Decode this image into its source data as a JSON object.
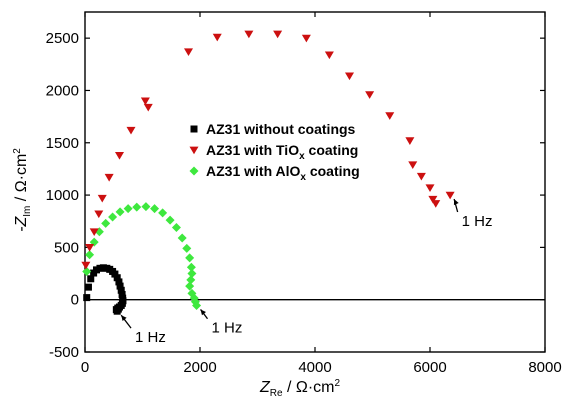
{
  "chart_data": {
    "type": "scatter",
    "xlabel_main": "Z",
    "xlabel_sub": "Re",
    "xlabel_unit": " / Ω·cm",
    "xlabel_sup": "2",
    "ylabel_prefix": "-Z",
    "ylabel_sub": "Im",
    "ylabel_unit": " / Ω·cm",
    "ylabel_sup": "2",
    "xlim": [
      0,
      8000
    ],
    "ylim": [
      -500,
      2750
    ],
    "xticks": [
      0,
      2000,
      4000,
      6000,
      8000
    ],
    "yticks": [
      -500,
      0,
      500,
      1000,
      1500,
      2000,
      2500
    ],
    "legend_position": "top-right",
    "series": [
      {
        "name_main": "AZ31 without coatings",
        "name_sub": "",
        "name_suffix": "",
        "marker": "square",
        "color": "#000000",
        "points": [
          [
            30,
            20
          ],
          [
            60,
            120
          ],
          [
            100,
            200
          ],
          [
            150,
            255
          ],
          [
            200,
            285
          ],
          [
            260,
            300
          ],
          [
            320,
            305
          ],
          [
            380,
            300
          ],
          [
            430,
            290
          ],
          [
            480,
            270
          ],
          [
            520,
            245
          ],
          [
            560,
            210
          ],
          [
            590,
            170
          ],
          [
            610,
            130
          ],
          [
            630,
            90
          ],
          [
            645,
            50
          ],
          [
            655,
            15
          ],
          [
            660,
            -10
          ],
          [
            650,
            -35
          ],
          [
            630,
            -55
          ],
          [
            600,
            -70
          ],
          [
            570,
            -80
          ],
          [
            545,
            -95
          ],
          [
            560,
            -110
          ],
          [
            580,
            -90
          ]
        ]
      },
      {
        "name_main": "AZ31 with TiO",
        "name_sub": "x",
        "name_suffix": " coating",
        "marker": "triangle-down",
        "color": "#cc1010",
        "points": [
          [
            15,
            330
          ],
          [
            80,
            500
          ],
          [
            160,
            650
          ],
          [
            240,
            820
          ],
          [
            300,
            970
          ],
          [
            420,
            1170
          ],
          [
            600,
            1380
          ],
          [
            800,
            1620
          ],
          [
            1050,
            1900
          ],
          [
            1100,
            1840
          ],
          [
            1800,
            2370
          ],
          [
            2300,
            2510
          ],
          [
            2850,
            2540
          ],
          [
            3350,
            2540
          ],
          [
            3850,
            2500
          ],
          [
            4250,
            2340
          ],
          [
            4600,
            2140
          ],
          [
            4950,
            1960
          ],
          [
            5300,
            1760
          ],
          [
            5650,
            1520
          ],
          [
            5700,
            1290
          ],
          [
            5850,
            1180
          ],
          [
            6000,
            1070
          ],
          [
            6050,
            960
          ],
          [
            6100,
            920
          ],
          [
            6350,
            1000
          ]
        ]
      },
      {
        "name_main": "AZ31 with AlO",
        "name_sub": "x",
        "name_suffix": " coating",
        "marker": "diamond",
        "color": "#3ee83e",
        "points": [
          [
            30,
            270
          ],
          [
            80,
            430
          ],
          [
            160,
            550
          ],
          [
            250,
            650
          ],
          [
            360,
            730
          ],
          [
            480,
            790
          ],
          [
            610,
            840
          ],
          [
            750,
            870
          ],
          [
            900,
            885
          ],
          [
            1060,
            890
          ],
          [
            1210,
            870
          ],
          [
            1350,
            830
          ],
          [
            1480,
            760
          ],
          [
            1590,
            690
          ],
          [
            1690,
            590
          ],
          [
            1770,
            490
          ],
          [
            1820,
            400
          ],
          [
            1850,
            310
          ],
          [
            1860,
            250
          ],
          [
            1840,
            190
          ],
          [
            1820,
            130
          ],
          [
            1860,
            60
          ],
          [
            1900,
            15
          ],
          [
            1920,
            -20
          ],
          [
            1940,
            -55
          ]
        ]
      }
    ],
    "annotations": [
      {
        "text": "1 Hz",
        "series": 1,
        "at": [
          6350,
          1000
        ],
        "text_at": [
          6550,
          800
        ]
      },
      {
        "text": "1 Hz",
        "series": 0,
        "at": [
          560,
          -110
        ],
        "text_at": [
          870,
          -310
        ]
      },
      {
        "text": "1 Hz",
        "series": 2,
        "at": [
          1940,
          -55
        ],
        "text_at": [
          2200,
          -220
        ]
      }
    ]
  }
}
